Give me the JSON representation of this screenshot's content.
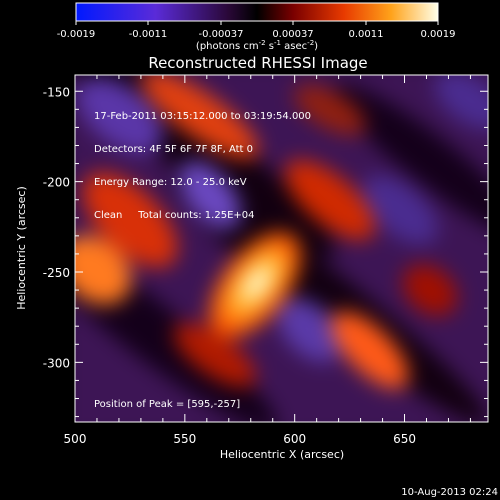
{
  "colorbar": {
    "tick_labels": [
      "-0.0019",
      "-0.0011",
      "-0.00037",
      "0.00037",
      "0.0011",
      "0.0019"
    ],
    "units_label_main": "(photons cm",
    "units_sup1": "-2",
    "units_mid": " s",
    "units_sup2": "-1",
    "units_end": " asec",
    "units_sup3": "-2",
    "units_close": ")"
  },
  "title": "Reconstructed RHESSI Image",
  "info": {
    "line1": "17-Feb-2011 03:15:12.000 to 03:19:54.000",
    "line2": "Detectors: 4F 5F 6F 7F 8F, Att 0",
    "line3": "Energy Range: 12.0 - 25.0 keV",
    "line4_a": "Clean",
    "line4_b": "Total counts: 1.25E+04",
    "peak": "Position of Peak = [595,-257]"
  },
  "axes": {
    "xlabel": "Heliocentric X (arcsec)",
    "ylabel": "Heliocentric Y (arcsec)",
    "xticks": [
      {
        "label": "500",
        "value": 500
      },
      {
        "label": "550",
        "value": 550
      },
      {
        "label": "600",
        "value": 600
      },
      {
        "label": "650",
        "value": 650
      }
    ],
    "yticks": [
      {
        "label": "-150",
        "value": -150
      },
      {
        "label": "-200",
        "value": -200
      },
      {
        "label": "-250",
        "value": -250
      },
      {
        "label": "-300",
        "value": -300
      }
    ],
    "xrange": [
      500,
      688
    ],
    "yrange": [
      -333,
      -141
    ]
  },
  "footer_date": "10-Aug-2013 02:24"
}
